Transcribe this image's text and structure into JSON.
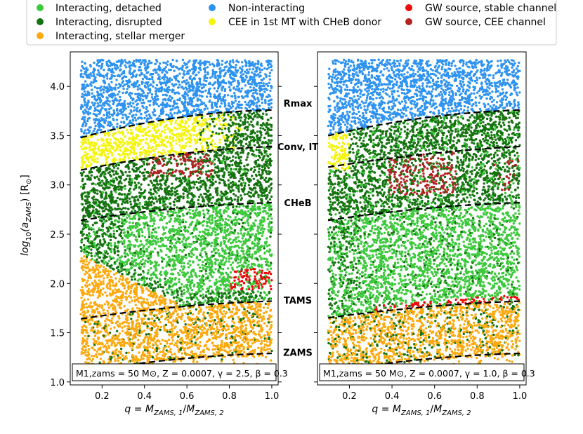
{
  "legend": {
    "placement": "top",
    "entries": [
      {
        "label": "Interacting, detached",
        "color": "#3cc93c"
      },
      {
        "label": "Non-interacting",
        "color": "#2e93f0"
      },
      {
        "label": "GW source, stable channel",
        "color": "#ee0a0a"
      },
      {
        "label": "Interacting, disrupted",
        "color": "#14720f"
      },
      {
        "label": "CEE in 1st MT with CHeB donor",
        "color": "#f4f40e"
      },
      {
        "label": "GW source, CEE channel",
        "color": "#b22222"
      },
      {
        "label": "Interacting, stellar merger",
        "color": "#fca90e"
      }
    ]
  },
  "ylabel_left": "log10(aZAMS) [R⊙]",
  "xlabel": "q = MZAMS,1/MZAMS,2",
  "middle_labels": [
    {
      "key": "rmax",
      "label": "Rmax",
      "y": 3.83
    },
    {
      "key": "conv",
      "label": "Conv, IT",
      "y": 3.39
    },
    {
      "key": "cheb",
      "label": "CHeB",
      "y": 2.82
    },
    {
      "key": "tams",
      "label": "TAMS",
      "y": 1.83
    },
    {
      "key": "zams",
      "label": "ZAMS",
      "y": 1.3
    }
  ],
  "chart_data": [
    {
      "type": "scatter",
      "panel": "left",
      "annotation": "M1,zams = 50 M⊙, Z = 0.0007, γ = 2.5, β = 0.3",
      "xlim": [
        0.05,
        1.03
      ],
      "ylim": [
        0.97,
        4.35
      ],
      "xticks": [
        0.2,
        0.4,
        0.6,
        0.8,
        1.0
      ],
      "yticks": [
        1.0,
        1.5,
        2.0,
        2.5,
        3.0,
        3.5,
        4.0
      ],
      "boundaries": [
        {
          "name": "Rmax",
          "points": [
            [
              0.1,
              3.48
            ],
            [
              0.55,
              3.68
            ],
            [
              1.0,
              3.76
            ]
          ]
        },
        {
          "name": "Conv, IT",
          "points": [
            [
              0.1,
              3.15
            ],
            [
              0.55,
              3.31
            ],
            [
              1.0,
              3.39
            ]
          ]
        },
        {
          "name": "CHeB",
          "points": [
            [
              0.1,
              2.64
            ],
            [
              0.55,
              2.76
            ],
            [
              1.0,
              2.82
            ]
          ]
        },
        {
          "name": "TAMS",
          "points": [
            [
              0.1,
              1.64
            ],
            [
              0.55,
              1.76
            ],
            [
              1.0,
              1.82
            ]
          ]
        },
        {
          "name": "ZAMS",
          "points": [
            [
              0.1,
              1.1
            ],
            [
              0.55,
              1.23
            ],
            [
              1.0,
              1.29
            ]
          ]
        }
      ],
      "regions": [
        {
          "class": "Non-interacting",
          "x_range": [
            0.1,
            1.0
          ],
          "y_range": [
            3.48,
            4.25
          ]
        },
        {
          "class": "CEE in 1st MT with CHeB donor",
          "x_range": [
            0.1,
            0.85
          ],
          "y_range": [
            3.15,
            3.7
          ]
        },
        {
          "class": "Interacting, disrupted",
          "x_range": [
            0.1,
            1.0
          ],
          "y_range": [
            2.64,
            3.39
          ]
        },
        {
          "class": "GW source, CEE channel",
          "x_range": [
            0.42,
            0.72
          ],
          "y_range": [
            3.05,
            3.35
          ]
        },
        {
          "class": "Interacting, detached",
          "x_range": [
            0.2,
            1.0
          ],
          "y_range": [
            1.76,
            2.82
          ]
        },
        {
          "class": "GW source, stable channel",
          "x_range": [
            0.8,
            1.0
          ],
          "y_range": [
            1.8,
            2.15
          ]
        },
        {
          "class": "Interacting, stellar merger",
          "x_range": [
            0.1,
            1.0
          ],
          "y_range": [
            1.1,
            2.25
          ]
        }
      ]
    },
    {
      "type": "scatter",
      "panel": "right",
      "annotation": "M1,zams = 50 M⊙, Z = 0.0007, γ = 1.0, β = 0.3",
      "xlim": [
        0.05,
        1.03
      ],
      "ylim": [
        0.97,
        4.35
      ],
      "xticks": [
        0.2,
        0.4,
        0.6,
        0.8,
        1.0
      ],
      "yticks": [
        1.0,
        1.5,
        2.0,
        2.5,
        3.0,
        3.5,
        4.0
      ],
      "boundaries": [
        {
          "name": "Rmax",
          "points": [
            [
              0.1,
              3.5
            ],
            [
              0.55,
              3.68
            ],
            [
              1.0,
              3.76
            ]
          ]
        },
        {
          "name": "Conv, IT",
          "points": [
            [
              0.1,
              3.18
            ],
            [
              0.55,
              3.31
            ],
            [
              1.0,
              3.39
            ]
          ]
        },
        {
          "name": "CHeB",
          "points": [
            [
              0.1,
              2.64
            ],
            [
              0.55,
              2.76
            ],
            [
              1.0,
              2.82
            ]
          ]
        },
        {
          "name": "TAMS",
          "points": [
            [
              0.1,
              1.65
            ],
            [
              0.55,
              1.76
            ],
            [
              1.0,
              1.82
            ]
          ]
        },
        {
          "name": "ZAMS",
          "points": [
            [
              0.1,
              1.1
            ],
            [
              0.55,
              1.23
            ],
            [
              1.0,
              1.29
            ]
          ]
        }
      ],
      "regions": [
        {
          "class": "Non-interacting",
          "x_range": [
            0.1,
            1.0
          ],
          "y_range": [
            3.5,
            4.25
          ]
        },
        {
          "class": "CEE in 1st MT with CHeB donor",
          "x_range": [
            0.1,
            0.2
          ],
          "y_range": [
            3.2,
            3.52
          ]
        },
        {
          "class": "Interacting, disrupted",
          "x_range": [
            0.1,
            1.0
          ],
          "y_range": [
            2.64,
            3.6
          ]
        },
        {
          "class": "GW source, CEE channel",
          "x_range": [
            0.38,
            0.7
          ],
          "y_range": [
            2.9,
            3.35
          ]
        },
        {
          "class": "Interacting, detached",
          "x_range": [
            0.1,
            1.0
          ],
          "y_range": [
            1.75,
            2.82
          ]
        },
        {
          "class": "GW source, stable channel",
          "x_range": [
            0.3,
            1.0
          ],
          "y_range": [
            1.72,
            1.8
          ]
        },
        {
          "class": "Interacting, stellar merger",
          "x_range": [
            0.1,
            1.0
          ],
          "y_range": [
            1.1,
            1.72
          ]
        }
      ]
    }
  ]
}
